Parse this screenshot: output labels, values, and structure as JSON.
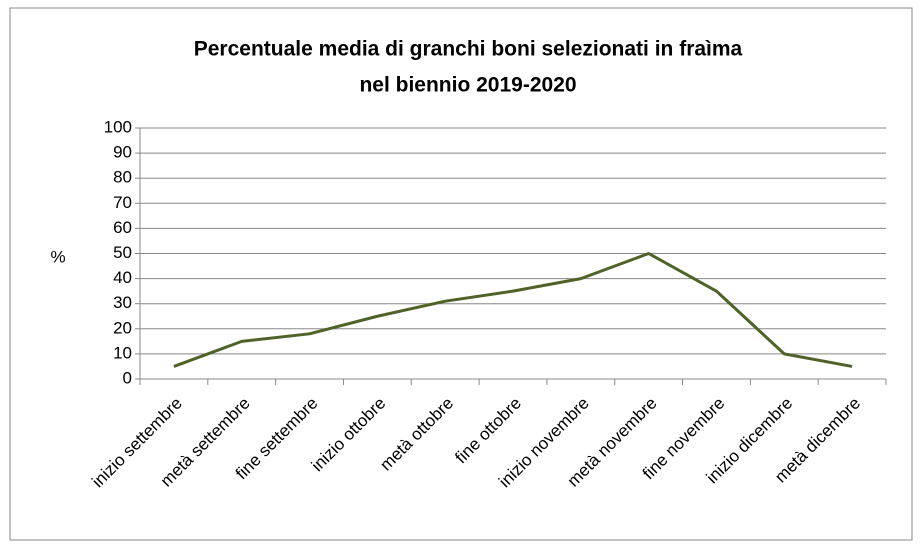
{
  "chart_data": {
    "type": "line",
    "title": [
      "Percentuale media di granchi boni selezionati in fraìma",
      "nel biennio 2019-2020"
    ],
    "y_label": "%",
    "categories": [
      "inizio settembre",
      "metà settembre",
      "fine settembre",
      "inizio ottobre",
      "metà ottobre",
      "fine ottobre",
      "inizio novembre",
      "metà novembre",
      "fine novembre",
      "inizio dicembre",
      "metà dicembre"
    ],
    "values": [
      5,
      15,
      18,
      25,
      31,
      35,
      40,
      50,
      35,
      10,
      5
    ],
    "color": "#4f6228",
    "ylim": [
      0,
      100
    ],
    "yticks": [
      0,
      10,
      20,
      30,
      40,
      50,
      60,
      70,
      80,
      90,
      100
    ],
    "grid": true
  }
}
